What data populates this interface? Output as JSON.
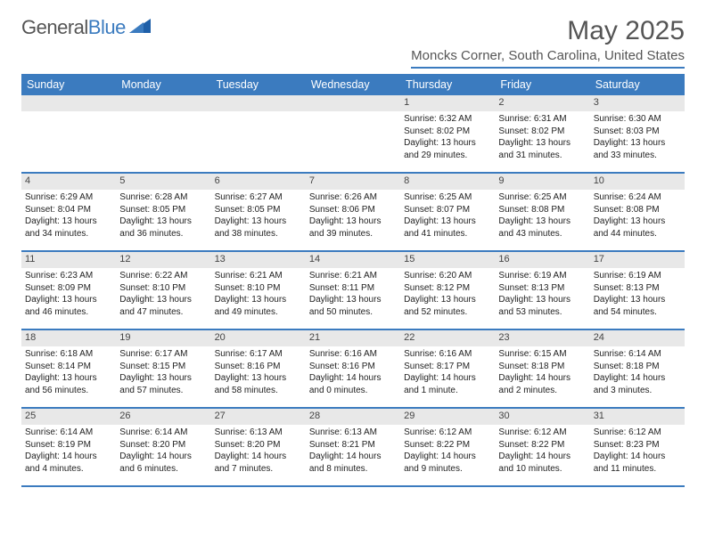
{
  "logo": {
    "general": "General",
    "blue": "Blue"
  },
  "title": "May 2025",
  "location": "Moncks Corner, South Carolina, United States",
  "colors": {
    "accent": "#3b7bbf",
    "daybar": "#e8e8e8",
    "text": "#333333",
    "bg": "#ffffff"
  },
  "weekdays": [
    "Sunday",
    "Monday",
    "Tuesday",
    "Wednesday",
    "Thursday",
    "Friday",
    "Saturday"
  ],
  "weeks": [
    [
      {
        "n": "",
        "sr": "",
        "ss": "",
        "dl": ""
      },
      {
        "n": "",
        "sr": "",
        "ss": "",
        "dl": ""
      },
      {
        "n": "",
        "sr": "",
        "ss": "",
        "dl": ""
      },
      {
        "n": "",
        "sr": "",
        "ss": "",
        "dl": ""
      },
      {
        "n": "1",
        "sr": "Sunrise: 6:32 AM",
        "ss": "Sunset: 8:02 PM",
        "dl": "Daylight: 13 hours and 29 minutes."
      },
      {
        "n": "2",
        "sr": "Sunrise: 6:31 AM",
        "ss": "Sunset: 8:02 PM",
        "dl": "Daylight: 13 hours and 31 minutes."
      },
      {
        "n": "3",
        "sr": "Sunrise: 6:30 AM",
        "ss": "Sunset: 8:03 PM",
        "dl": "Daylight: 13 hours and 33 minutes."
      }
    ],
    [
      {
        "n": "4",
        "sr": "Sunrise: 6:29 AM",
        "ss": "Sunset: 8:04 PM",
        "dl": "Daylight: 13 hours and 34 minutes."
      },
      {
        "n": "5",
        "sr": "Sunrise: 6:28 AM",
        "ss": "Sunset: 8:05 PM",
        "dl": "Daylight: 13 hours and 36 minutes."
      },
      {
        "n": "6",
        "sr": "Sunrise: 6:27 AM",
        "ss": "Sunset: 8:05 PM",
        "dl": "Daylight: 13 hours and 38 minutes."
      },
      {
        "n": "7",
        "sr": "Sunrise: 6:26 AM",
        "ss": "Sunset: 8:06 PM",
        "dl": "Daylight: 13 hours and 39 minutes."
      },
      {
        "n": "8",
        "sr": "Sunrise: 6:25 AM",
        "ss": "Sunset: 8:07 PM",
        "dl": "Daylight: 13 hours and 41 minutes."
      },
      {
        "n": "9",
        "sr": "Sunrise: 6:25 AM",
        "ss": "Sunset: 8:08 PM",
        "dl": "Daylight: 13 hours and 43 minutes."
      },
      {
        "n": "10",
        "sr": "Sunrise: 6:24 AM",
        "ss": "Sunset: 8:08 PM",
        "dl": "Daylight: 13 hours and 44 minutes."
      }
    ],
    [
      {
        "n": "11",
        "sr": "Sunrise: 6:23 AM",
        "ss": "Sunset: 8:09 PM",
        "dl": "Daylight: 13 hours and 46 minutes."
      },
      {
        "n": "12",
        "sr": "Sunrise: 6:22 AM",
        "ss": "Sunset: 8:10 PM",
        "dl": "Daylight: 13 hours and 47 minutes."
      },
      {
        "n": "13",
        "sr": "Sunrise: 6:21 AM",
        "ss": "Sunset: 8:10 PM",
        "dl": "Daylight: 13 hours and 49 minutes."
      },
      {
        "n": "14",
        "sr": "Sunrise: 6:21 AM",
        "ss": "Sunset: 8:11 PM",
        "dl": "Daylight: 13 hours and 50 minutes."
      },
      {
        "n": "15",
        "sr": "Sunrise: 6:20 AM",
        "ss": "Sunset: 8:12 PM",
        "dl": "Daylight: 13 hours and 52 minutes."
      },
      {
        "n": "16",
        "sr": "Sunrise: 6:19 AM",
        "ss": "Sunset: 8:13 PM",
        "dl": "Daylight: 13 hours and 53 minutes."
      },
      {
        "n": "17",
        "sr": "Sunrise: 6:19 AM",
        "ss": "Sunset: 8:13 PM",
        "dl": "Daylight: 13 hours and 54 minutes."
      }
    ],
    [
      {
        "n": "18",
        "sr": "Sunrise: 6:18 AM",
        "ss": "Sunset: 8:14 PM",
        "dl": "Daylight: 13 hours and 56 minutes."
      },
      {
        "n": "19",
        "sr": "Sunrise: 6:17 AM",
        "ss": "Sunset: 8:15 PM",
        "dl": "Daylight: 13 hours and 57 minutes."
      },
      {
        "n": "20",
        "sr": "Sunrise: 6:17 AM",
        "ss": "Sunset: 8:16 PM",
        "dl": "Daylight: 13 hours and 58 minutes."
      },
      {
        "n": "21",
        "sr": "Sunrise: 6:16 AM",
        "ss": "Sunset: 8:16 PM",
        "dl": "Daylight: 14 hours and 0 minutes."
      },
      {
        "n": "22",
        "sr": "Sunrise: 6:16 AM",
        "ss": "Sunset: 8:17 PM",
        "dl": "Daylight: 14 hours and 1 minute."
      },
      {
        "n": "23",
        "sr": "Sunrise: 6:15 AM",
        "ss": "Sunset: 8:18 PM",
        "dl": "Daylight: 14 hours and 2 minutes."
      },
      {
        "n": "24",
        "sr": "Sunrise: 6:14 AM",
        "ss": "Sunset: 8:18 PM",
        "dl": "Daylight: 14 hours and 3 minutes."
      }
    ],
    [
      {
        "n": "25",
        "sr": "Sunrise: 6:14 AM",
        "ss": "Sunset: 8:19 PM",
        "dl": "Daylight: 14 hours and 4 minutes."
      },
      {
        "n": "26",
        "sr": "Sunrise: 6:14 AM",
        "ss": "Sunset: 8:20 PM",
        "dl": "Daylight: 14 hours and 6 minutes."
      },
      {
        "n": "27",
        "sr": "Sunrise: 6:13 AM",
        "ss": "Sunset: 8:20 PM",
        "dl": "Daylight: 14 hours and 7 minutes."
      },
      {
        "n": "28",
        "sr": "Sunrise: 6:13 AM",
        "ss": "Sunset: 8:21 PM",
        "dl": "Daylight: 14 hours and 8 minutes."
      },
      {
        "n": "29",
        "sr": "Sunrise: 6:12 AM",
        "ss": "Sunset: 8:22 PM",
        "dl": "Daylight: 14 hours and 9 minutes."
      },
      {
        "n": "30",
        "sr": "Sunrise: 6:12 AM",
        "ss": "Sunset: 8:22 PM",
        "dl": "Daylight: 14 hours and 10 minutes."
      },
      {
        "n": "31",
        "sr": "Sunrise: 6:12 AM",
        "ss": "Sunset: 8:23 PM",
        "dl": "Daylight: 14 hours and 11 minutes."
      }
    ]
  ]
}
